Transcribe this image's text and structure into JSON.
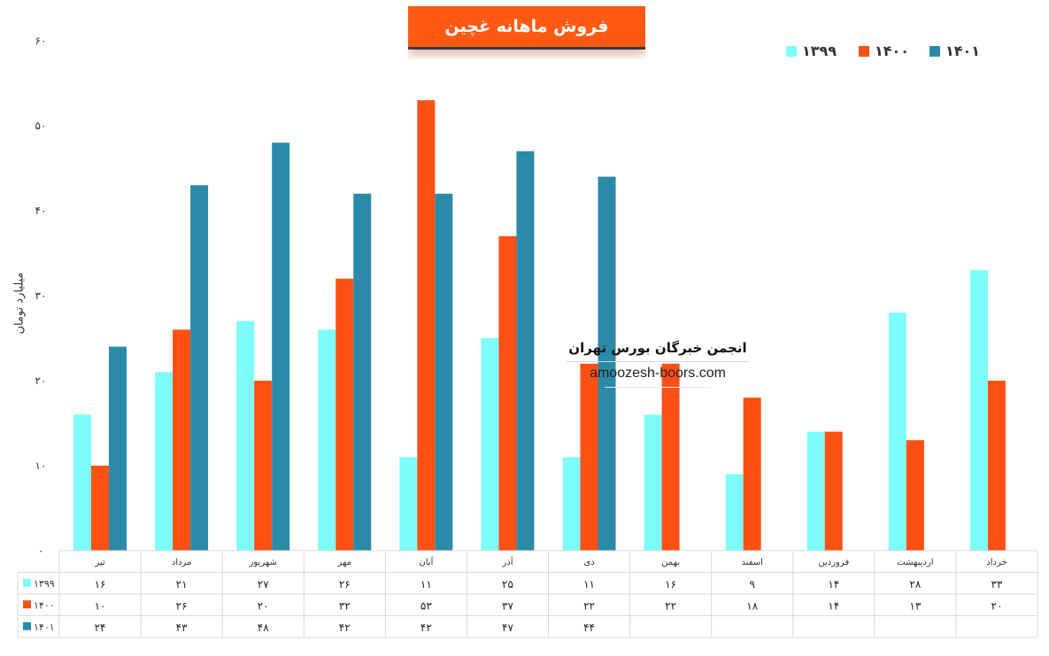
{
  "chart_data": {
    "type": "bar",
    "title": "فروش ماهانه غچین",
    "ylabel": "میلیارد تومان",
    "ylim": [
      0,
      60
    ],
    "yticks": [
      "۰",
      "۱۰",
      "۲۰",
      "۳۰",
      "۴۰",
      "۵۰",
      "۶۰"
    ],
    "ytick_values": [
      0,
      10,
      20,
      30,
      40,
      50,
      60
    ],
    "grid": false,
    "legend_position": "top-right",
    "categories": [
      "تیر",
      "مرداد",
      "شهریور",
      "مهر",
      "آبان",
      "آذر",
      "دی",
      "بهمن",
      "اسفند",
      "فروردین",
      "اردیبهشت",
      "خرداد"
    ],
    "series": [
      {
        "name": "۱۳۹۹",
        "color": "#7efcfc",
        "values": [
          16,
          21,
          27,
          26,
          11,
          25,
          11,
          16,
          9,
          14,
          28,
          33
        ],
        "labels": [
          "۱۶",
          "۲۱",
          "۲۷",
          "۲۶",
          "۱۱",
          "۲۵",
          "۱۱",
          "۱۶",
          "۹",
          "۱۴",
          "۲۸",
          "۳۳"
        ]
      },
      {
        "name": "۱۴۰۰",
        "color": "#ff5014",
        "values": [
          10,
          26,
          20,
          32,
          53,
          37,
          22,
          22,
          18,
          14,
          13,
          20
        ],
        "labels": [
          "۱۰",
          "۲۶",
          "۲۰",
          "۳۲",
          "۵۳",
          "۳۷",
          "۲۲",
          "۲۲",
          "۱۸",
          "۱۴",
          "۱۳",
          "۲۰"
        ]
      },
      {
        "name": "۱۴۰۱",
        "color": "#2a8aa8",
        "values": [
          24,
          43,
          48,
          42,
          42,
          47,
          44,
          null,
          null,
          null,
          null,
          null
        ],
        "labels": [
          "۲۴",
          "۴۳",
          "۴۸",
          "۴۲",
          "۴۲",
          "۴۷",
          "۴۴",
          "",
          "",
          "",
          "",
          ""
        ]
      }
    ]
  },
  "watermark": {
    "title": "انجمن خبرگان بورس تهران",
    "url": "amoozesh-boors.com"
  }
}
